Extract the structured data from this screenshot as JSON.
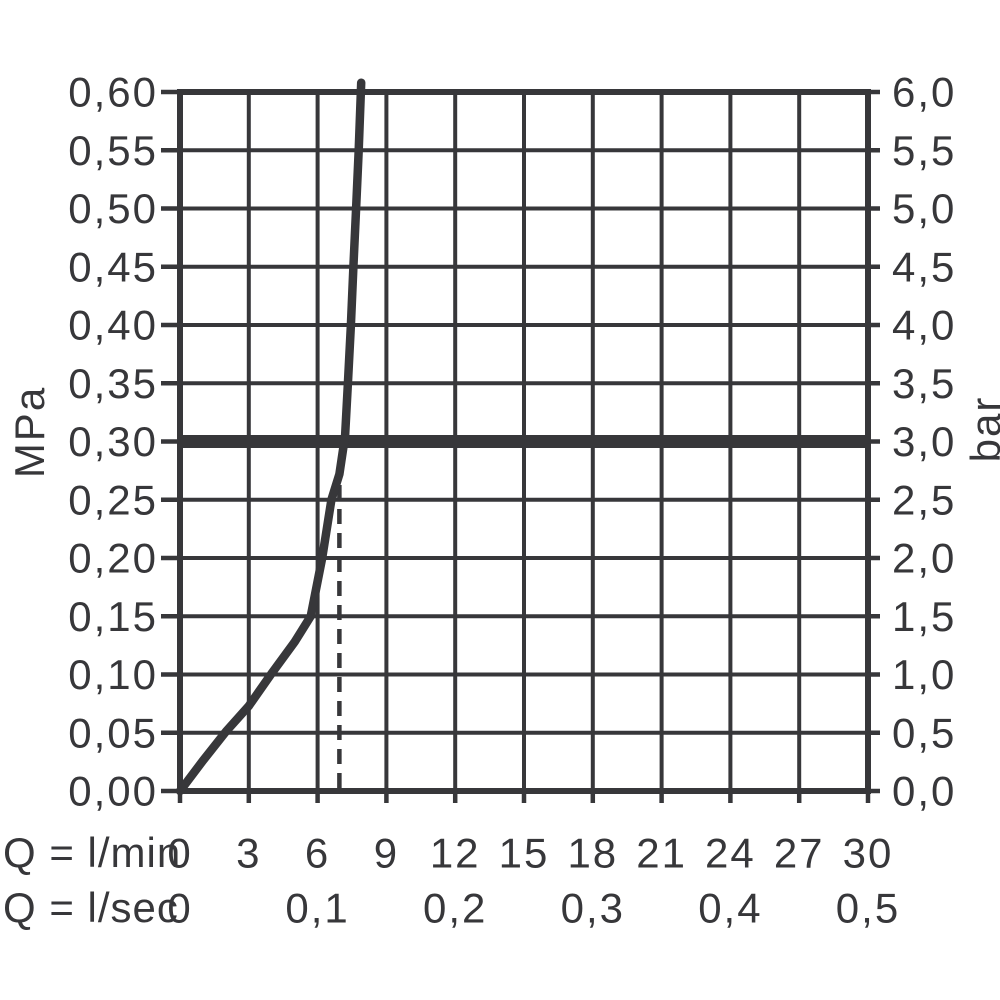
{
  "figure": {
    "left_unit": "MPa",
    "right_unit": "bar",
    "x_row1_label": "Q = l/min",
    "x_row2_label": "Q = l/sec"
  },
  "chart_data": {
    "type": "line",
    "title": "",
    "description": "Flow rate vs pressure performance curve with 3 bar reference line and dashed flow marker",
    "grid": true,
    "ink_color": "#37373a",
    "x_axis": {
      "label_row1": "Q = l/min",
      "label_row2": "Q = l/sec",
      "min_lmin": 0,
      "max_lmin": 30,
      "step_lmin": 3,
      "ticks_lmin": [
        "0",
        "3",
        "6",
        "9",
        "12",
        "15",
        "18",
        "21",
        "24",
        "27",
        "30"
      ],
      "ticks_lmin_positions": [
        0,
        3,
        6,
        9,
        12,
        15,
        18,
        21,
        24,
        27,
        30
      ],
      "ticks_lsec": [
        "0",
        "0,1",
        "0,2",
        "0,3",
        "0,4",
        "0,5"
      ],
      "ticks_lsec_positions_lmin": [
        0,
        6,
        12,
        18,
        24,
        30
      ]
    },
    "y_axis_left": {
      "unit": "MPa",
      "min": 0,
      "max": 0.6,
      "step": 0.05,
      "ticks": [
        "0,00",
        "0,05",
        "0,10",
        "0,15",
        "0,20",
        "0,25",
        "0,30",
        "0,35",
        "0,40",
        "0,45",
        "0,50",
        "0,55",
        "0,60"
      ]
    },
    "y_axis_right": {
      "unit": "bar",
      "min": 0,
      "max": 6,
      "step": 0.5,
      "ticks": [
        "0,0",
        "0,5",
        "1,0",
        "1,5",
        "2,0",
        "2,5",
        "3,0",
        "3,5",
        "4,0",
        "4,5",
        "5,0",
        "5,5",
        "6,0"
      ]
    },
    "series": [
      {
        "name": "flow-pressure-curve",
        "points_lmin_mpa": [
          [
            0,
            0
          ],
          [
            1.0,
            0.026
          ],
          [
            2.0,
            0.051
          ],
          [
            3.0,
            0.073
          ],
          [
            4.0,
            0.101
          ],
          [
            5.0,
            0.128
          ],
          [
            5.7,
            0.15
          ],
          [
            6.2,
            0.2
          ],
          [
            6.6,
            0.25
          ],
          [
            6.95,
            0.272
          ],
          [
            7.2,
            0.305
          ],
          [
            7.32,
            0.35
          ],
          [
            7.45,
            0.4
          ],
          [
            7.56,
            0.45
          ],
          [
            7.68,
            0.5
          ],
          [
            7.79,
            0.55
          ],
          [
            7.9,
            0.608
          ]
        ]
      }
    ],
    "reference_line": {
      "orientation": "horizontal",
      "value_mpa": 0.3,
      "value_bar": 3.0
    },
    "dashed_marker": {
      "orientation": "vertical",
      "style": "dashed",
      "x_lmin": 6.95,
      "mpa_from": 0,
      "mpa_to": 0.268
    }
  }
}
